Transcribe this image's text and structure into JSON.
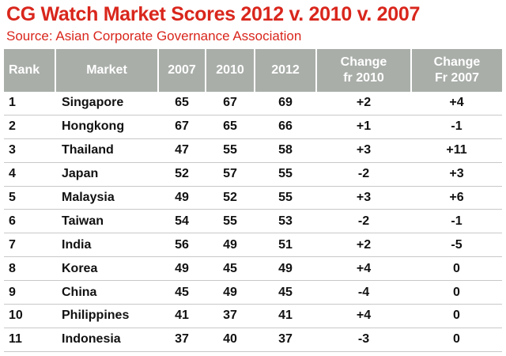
{
  "header": {
    "title": "CG Watch Market Scores 2012 v. 2010 v. 2007",
    "subtitle": "Source: Asian Corporate Governance Association"
  },
  "table": {
    "columns": [
      "Rank",
      "Market",
      "2007",
      "2010",
      "2012",
      "Change\nfr 2010",
      "Change\nFr 2007"
    ],
    "rows": [
      [
        "1",
        "Singapore",
        "65",
        "67",
        "69",
        "+2",
        "+4"
      ],
      [
        "2",
        "Hongkong",
        "67",
        "65",
        "66",
        "+1",
        "-1"
      ],
      [
        "3",
        "Thailand",
        "47",
        "55",
        "58",
        "+3",
        "+11"
      ],
      [
        "4",
        "Japan",
        "52",
        "57",
        "55",
        "-2",
        "+3"
      ],
      [
        "5",
        "Malaysia",
        "49",
        "52",
        "55",
        "+3",
        "+6"
      ],
      [
        "6",
        "Taiwan",
        "54",
        "55",
        "53",
        "-2",
        "-1"
      ],
      [
        "7",
        "India",
        "56",
        "49",
        "51",
        "+2",
        "-5"
      ],
      [
        "8",
        "Korea",
        "49",
        "45",
        "49",
        "+4",
        "0"
      ],
      [
        "9",
        "China",
        "45",
        "49",
        "45",
        "-4",
        "0"
      ],
      [
        "10",
        "Philippines",
        "41",
        "37",
        "41",
        "+4",
        "0"
      ],
      [
        "11",
        "Indonesia",
        "37",
        "40",
        "37",
        "-3",
        "0"
      ]
    ]
  }
}
